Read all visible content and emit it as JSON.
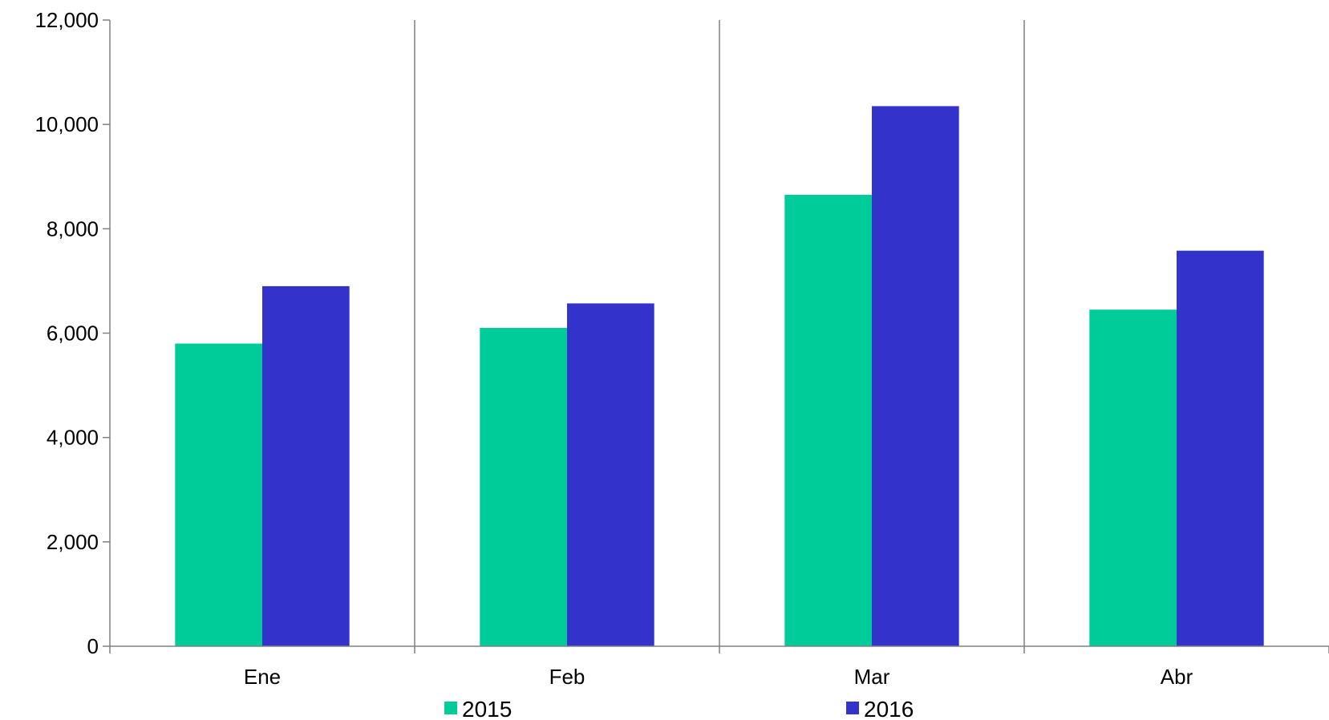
{
  "chart_data": {
    "type": "bar",
    "title": "",
    "xlabel": "",
    "ylabel": "",
    "categories": [
      "Ene",
      "Feb",
      "Mar",
      "Abr"
    ],
    "series": [
      {
        "name": "2015",
        "color": "#00CC99",
        "values": [
          5800,
          6100,
          8650,
          6450
        ]
      },
      {
        "name": "2016",
        "color": "#3333CC",
        "values": [
          6900,
          6570,
          10350,
          7580
        ]
      }
    ],
    "ylim": [
      0,
      12000
    ],
    "yticks": [
      0,
      2000,
      4000,
      6000,
      8000,
      10000,
      12000
    ],
    "ytick_labels": [
      "0",
      "2,000",
      "4,000",
      "6,000",
      "8,000",
      "10,000",
      "12,000"
    ],
    "grid": "vertical category separators",
    "legend_placement": "bottom"
  }
}
